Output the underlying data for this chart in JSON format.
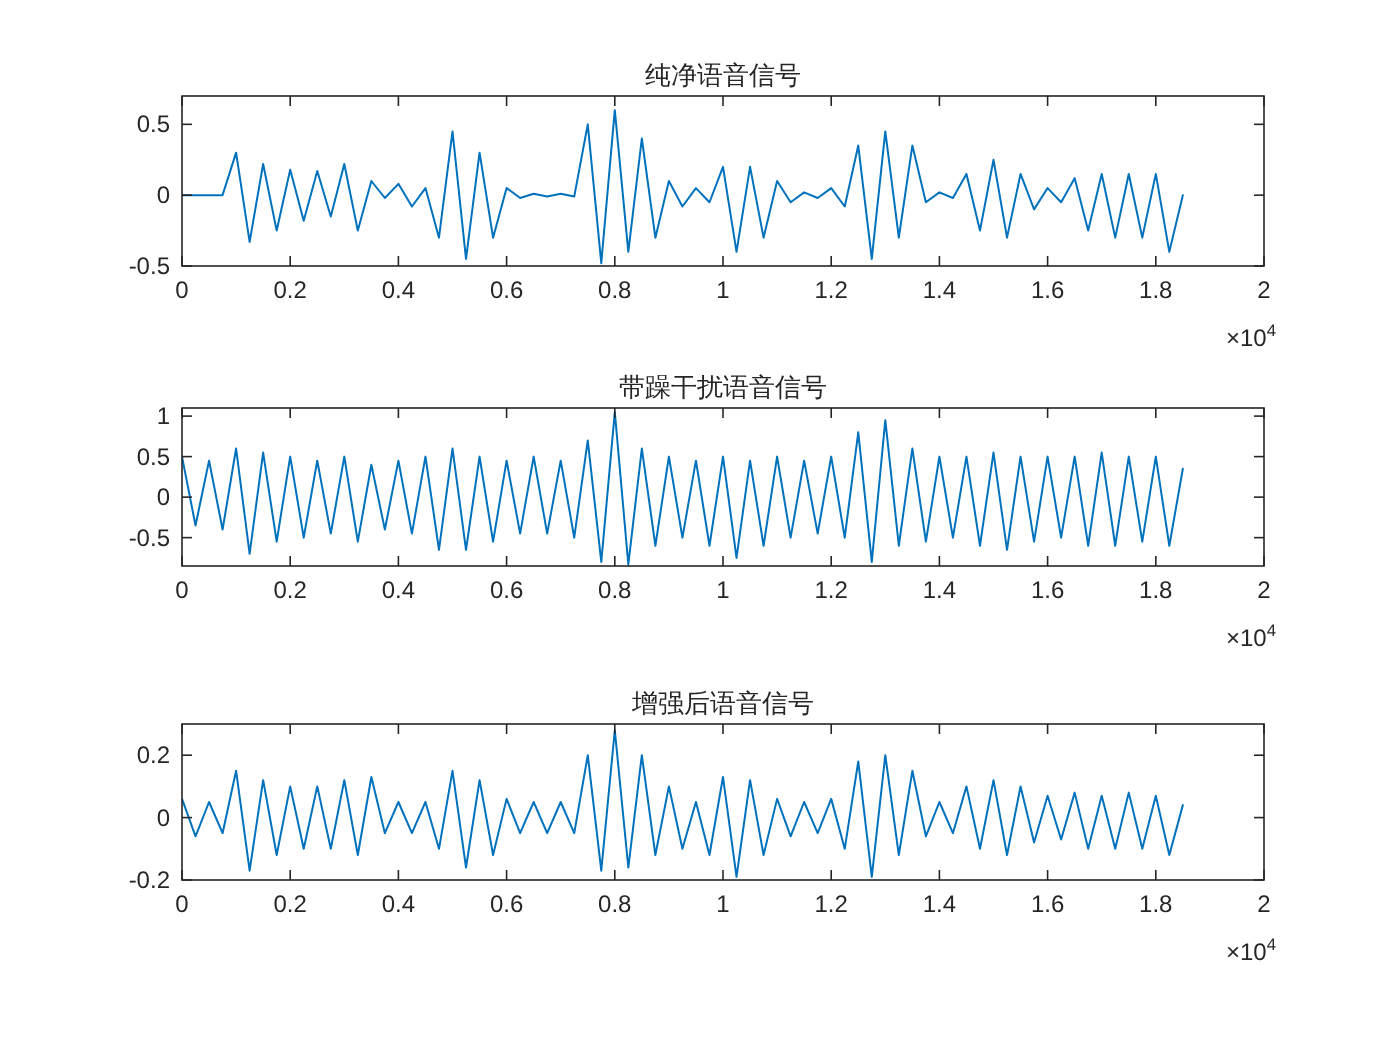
{
  "chart_data": [
    {
      "type": "line",
      "title": "纯净语音信号",
      "x": [
        0,
        0.025,
        0.05,
        0.075,
        0.1,
        0.125,
        0.15,
        0.175,
        0.2,
        0.225,
        0.25,
        0.275,
        0.3,
        0.325,
        0.35,
        0.375,
        0.4,
        0.425,
        0.45,
        0.475,
        0.5,
        0.525,
        0.55,
        0.575,
        0.6,
        0.625,
        0.65,
        0.675,
        0.7,
        0.725,
        0.75,
        0.775,
        0.8,
        0.825,
        0.85,
        0.875,
        0.9,
        0.925,
        0.95,
        0.975,
        1,
        1.025,
        1.05,
        1.075,
        1.1,
        1.125,
        1.15,
        1.175,
        1.2,
        1.225,
        1.25,
        1.275,
        1.3,
        1.325,
        1.35,
        1.375,
        1.4,
        1.425,
        1.45,
        1.475,
        1.5,
        1.525,
        1.55,
        1.575,
        1.6,
        1.625,
        1.65,
        1.675,
        1.7,
        1.725,
        1.75,
        1.775,
        1.8,
        1.825,
        1.85
      ],
      "series": [
        {
          "color": "#0072bd",
          "values": [
            0,
            0,
            0,
            0,
            0.3,
            -0.33,
            0.22,
            -0.25,
            0.18,
            -0.18,
            0.17,
            -0.15,
            0.22,
            -0.25,
            0.1,
            -0.02,
            0.08,
            -0.08,
            0.05,
            -0.3,
            0.45,
            -0.45,
            0.3,
            -0.3,
            0.05,
            -0.02,
            0.01,
            -0.01,
            0.01,
            -0.01,
            0.5,
            -0.48,
            0.6,
            -0.4,
            0.4,
            -0.3,
            0.1,
            -0.08,
            0.05,
            -0.05,
            0.2,
            -0.4,
            0.2,
            -0.3,
            0.1,
            -0.05,
            0.02,
            -0.02,
            0.05,
            -0.08,
            0.35,
            -0.45,
            0.45,
            -0.3,
            0.35,
            -0.05,
            0.02,
            -0.02,
            0.15,
            -0.25,
            0.25,
            -0.3,
            0.15,
            -0.1,
            0.05,
            -0.05,
            0.12,
            -0.25,
            0.15,
            -0.3,
            0.15,
            -0.3,
            0.15,
            -0.4,
            0
          ]
        }
      ],
      "xlim": [
        0,
        2
      ],
      "xticks": [
        0,
        0.2,
        0.4,
        0.6,
        0.8,
        1,
        1.2,
        1.4,
        1.6,
        1.8,
        2
      ],
      "ylim": [
        -0.5,
        0.7
      ],
      "yticks": [
        -0.5,
        0,
        0.5
      ],
      "annotations": [
        "×10$^{4}$"
      ]
    },
    {
      "type": "line",
      "title": "带躁干扰语音信号",
      "x": [
        0,
        0.025,
        0.05,
        0.075,
        0.1,
        0.125,
        0.15,
        0.175,
        0.2,
        0.225,
        0.25,
        0.275,
        0.3,
        0.325,
        0.35,
        0.375,
        0.4,
        0.425,
        0.45,
        0.475,
        0.5,
        0.525,
        0.55,
        0.575,
        0.6,
        0.625,
        0.65,
        0.675,
        0.7,
        0.725,
        0.75,
        0.775,
        0.8,
        0.825,
        0.85,
        0.875,
        0.9,
        0.925,
        0.95,
        0.975,
        1,
        1.025,
        1.05,
        1.075,
        1.1,
        1.125,
        1.15,
        1.175,
        1.2,
        1.225,
        1.25,
        1.275,
        1.3,
        1.325,
        1.35,
        1.375,
        1.4,
        1.425,
        1.45,
        1.475,
        1.5,
        1.525,
        1.55,
        1.575,
        1.6,
        1.625,
        1.65,
        1.675,
        1.7,
        1.725,
        1.75,
        1.775,
        1.8,
        1.825,
        1.85
      ],
      "series": [
        {
          "color": "#0072bd",
          "values": [
            0.5,
            -0.35,
            0.45,
            -0.4,
            0.6,
            -0.7,
            0.55,
            -0.55,
            0.5,
            -0.5,
            0.45,
            -0.45,
            0.5,
            -0.55,
            0.4,
            -0.4,
            0.45,
            -0.45,
            0.5,
            -0.65,
            0.6,
            -0.65,
            0.5,
            -0.55,
            0.45,
            -0.45,
            0.5,
            -0.45,
            0.45,
            -0.5,
            0.7,
            -0.8,
            1.05,
            -0.83,
            0.6,
            -0.6,
            0.5,
            -0.5,
            0.45,
            -0.6,
            0.5,
            -0.75,
            0.45,
            -0.6,
            0.5,
            -0.5,
            0.45,
            -0.45,
            0.5,
            -0.5,
            0.8,
            -0.8,
            0.95,
            -0.6,
            0.6,
            -0.55,
            0.5,
            -0.5,
            0.5,
            -0.6,
            0.55,
            -0.65,
            0.5,
            -0.55,
            0.5,
            -0.5,
            0.5,
            -0.6,
            0.55,
            -0.6,
            0.5,
            -0.55,
            0.5,
            -0.6,
            0.35
          ]
        }
      ],
      "xlim": [
        0,
        2
      ],
      "xticks": [
        0,
        0.2,
        0.4,
        0.6,
        0.8,
        1,
        1.2,
        1.4,
        1.6,
        1.8,
        2
      ],
      "ylim": [
        -0.85,
        1.1
      ],
      "yticks": [
        -0.5,
        0,
        0.5,
        1
      ],
      "annotations": [
        "×10$^{4}$"
      ]
    },
    {
      "type": "line",
      "title": "增强后语音信号",
      "x": [
        0,
        0.025,
        0.05,
        0.075,
        0.1,
        0.125,
        0.15,
        0.175,
        0.2,
        0.225,
        0.25,
        0.275,
        0.3,
        0.325,
        0.35,
        0.375,
        0.4,
        0.425,
        0.45,
        0.475,
        0.5,
        0.525,
        0.55,
        0.575,
        0.6,
        0.625,
        0.65,
        0.675,
        0.7,
        0.725,
        0.75,
        0.775,
        0.8,
        0.825,
        0.85,
        0.875,
        0.9,
        0.925,
        0.95,
        0.975,
        1,
        1.025,
        1.05,
        1.075,
        1.1,
        1.125,
        1.15,
        1.175,
        1.2,
        1.225,
        1.25,
        1.275,
        1.3,
        1.325,
        1.35,
        1.375,
        1.4,
        1.425,
        1.45,
        1.475,
        1.5,
        1.525,
        1.55,
        1.575,
        1.6,
        1.625,
        1.65,
        1.675,
        1.7,
        1.725,
        1.75,
        1.775,
        1.8,
        1.825,
        1.85
      ],
      "series": [
        {
          "color": "#0072bd",
          "values": [
            0.06,
            -0.06,
            0.05,
            -0.05,
            0.15,
            -0.17,
            0.12,
            -0.12,
            0.1,
            -0.1,
            0.1,
            -0.1,
            0.12,
            -0.12,
            0.13,
            -0.05,
            0.05,
            -0.05,
            0.05,
            -0.1,
            0.15,
            -0.16,
            0.12,
            -0.12,
            0.06,
            -0.05,
            0.05,
            -0.05,
            0.05,
            -0.05,
            0.2,
            -0.17,
            0.28,
            -0.16,
            0.2,
            -0.12,
            0.1,
            -0.1,
            0.05,
            -0.12,
            0.13,
            -0.19,
            0.12,
            -0.12,
            0.06,
            -0.06,
            0.05,
            -0.05,
            0.06,
            -0.1,
            0.18,
            -0.19,
            0.2,
            -0.12,
            0.15,
            -0.06,
            0.05,
            -0.05,
            0.1,
            -0.1,
            0.12,
            -0.12,
            0.1,
            -0.08,
            0.07,
            -0.07,
            0.08,
            -0.1,
            0.07,
            -0.1,
            0.08,
            -0.1,
            0.07,
            -0.12,
            0.04
          ]
        }
      ],
      "xlim": [
        0,
        2
      ],
      "xticks": [
        0,
        0.2,
        0.4,
        0.6,
        0.8,
        1,
        1.2,
        1.4,
        1.6,
        1.8,
        2
      ],
      "ylim": [
        -0.2,
        0.3
      ],
      "yticks": [
        -0.2,
        0,
        0.2
      ],
      "annotations": [
        "×10$^{4}$"
      ]
    }
  ]
}
